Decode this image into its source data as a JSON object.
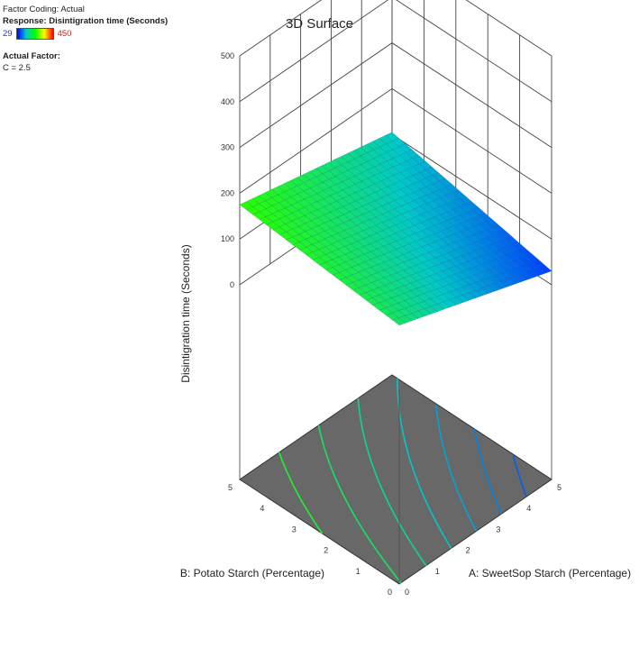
{
  "legend": {
    "factor_coding": "Factor Coding: Actual",
    "response": "Response: Disintigration time (Seconds)",
    "scale_min": "29",
    "scale_max": "450",
    "actual_factor_label": "Actual Factor:",
    "actual_factor_value": "C = 2.5"
  },
  "colors": {
    "floor": "#686868",
    "surface_low": "#0000ff",
    "surface_high": "#00ff00",
    "grid": "#444444"
  },
  "chart_data": {
    "type": "surface",
    "title": "3D Surface",
    "xlabel": "A: SweetSop Starch (Percentage)",
    "ylabel": "B: Potato Starch  (Percentage)",
    "zlabel": "Disintigration time (Seconds)",
    "x_range": [
      0,
      5
    ],
    "y_range": [
      0,
      5
    ],
    "z_range": [
      0,
      500
    ],
    "x_ticks": [
      "0",
      "1",
      "2",
      "3",
      "4",
      "5"
    ],
    "y_ticks": [
      "0",
      "1",
      "2",
      "3",
      "4",
      "5"
    ],
    "z_ticks": [
      "0",
      "100",
      "200",
      "300",
      "400",
      "500"
    ],
    "surface_corners": [
      {
        "A": 0,
        "B": 0,
        "z": 140
      },
      {
        "A": 5,
        "B": 0,
        "z": 30
      },
      {
        "A": 0,
        "B": 5,
        "z": 175
      },
      {
        "A": 5,
        "B": 5,
        "z": 105
      }
    ],
    "contour_count": 7
  }
}
